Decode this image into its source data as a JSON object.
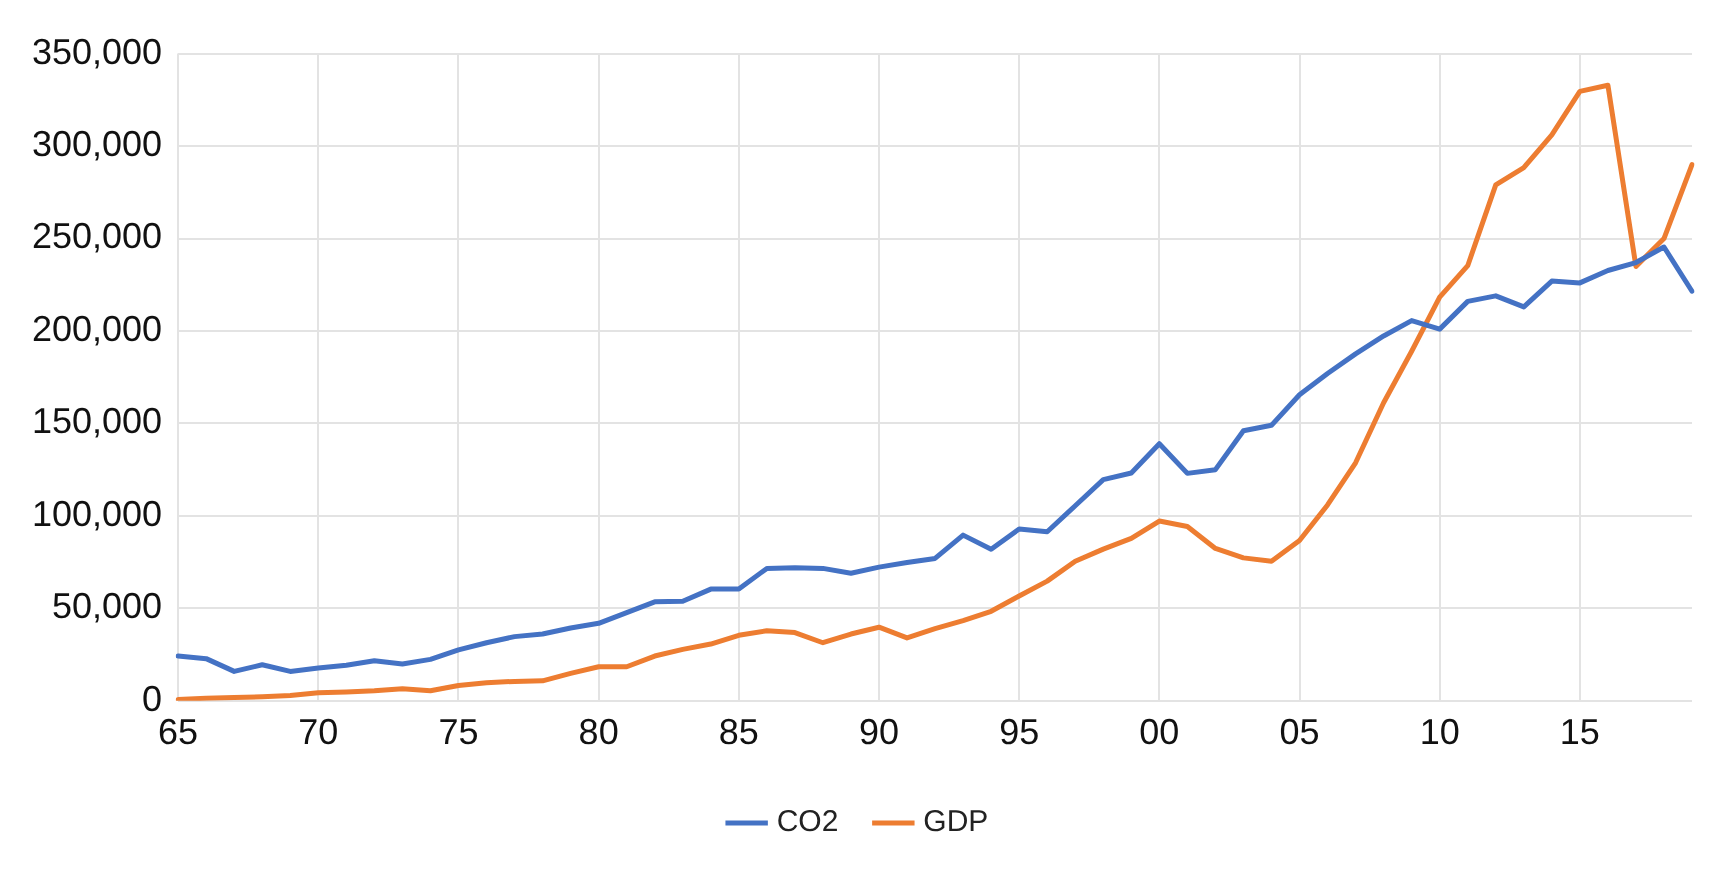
{
  "chart_data": {
    "type": "line",
    "categories": [
      "65",
      null,
      null,
      null,
      null,
      "70",
      null,
      null,
      null,
      null,
      "75",
      null,
      null,
      null,
      null,
      "80",
      null,
      null,
      null,
      null,
      "85",
      null,
      null,
      null,
      null,
      "90",
      null,
      null,
      null,
      null,
      "95",
      null,
      null,
      null,
      null,
      "00",
      null,
      null,
      null,
      null,
      "05",
      null,
      null,
      null,
      null,
      "10",
      null,
      null,
      null,
      null,
      "15",
      null,
      null,
      null,
      null
    ],
    "series": [
      {
        "name": "CO2",
        "color": "#4472c4",
        "values": [
          24200,
          22800,
          15900,
          19500,
          15900,
          17700,
          19200,
          21700,
          19900,
          22400,
          27500,
          31400,
          34700,
          36100,
          39400,
          41900,
          47700,
          53500,
          53800,
          60400,
          60400,
          71600,
          71900,
          71600,
          69000,
          72300,
          74800,
          77000,
          89600,
          82000,
          92900,
          91400,
          105500,
          119600,
          123200,
          139000,
          123000,
          125000,
          146000,
          149000,
          165500,
          177000,
          187600,
          197300,
          205600,
          201000,
          216000,
          219000,
          213000,
          227000,
          226000,
          232700,
          237000,
          245400,
          221500
        ]
      },
      {
        "name": "GDP",
        "color": "#ed7d31",
        "values": [
          700,
          1400,
          1800,
          2200,
          2900,
          4300,
          4700,
          5400,
          6500,
          5400,
          8300,
          9800,
          10500,
          10800,
          14800,
          18400,
          18400,
          24200,
          27800,
          30700,
          35400,
          37900,
          36900,
          31400,
          36100,
          39800,
          34000,
          39000,
          43400,
          48400,
          56700,
          64700,
          75500,
          82000,
          87800,
          97200,
          94300,
          82400,
          77300,
          75500,
          86700,
          105900,
          128700,
          161200,
          189000,
          218300,
          235300,
          279000,
          288400,
          306000,
          329600,
          332900,
          234900,
          250000,
          290000
        ]
      }
    ],
    "ylim": [
      0,
      350000
    ],
    "yticks": [
      0,
      {
        "value": 50000,
        "label": "50,000"
      },
      {
        "value": 100000,
        "label": "100,000"
      },
      {
        "value": 150000,
        "label": "150,000"
      },
      {
        "value": 200000,
        "label": "200,000"
      },
      {
        "value": 250000,
        "label": "250,000"
      },
      {
        "value": 300000,
        "label": "300,000"
      },
      {
        "value": 350000,
        "label": "350,000"
      }
    ],
    "grid": true,
    "legend": "bottom",
    "marker": "none",
    "line_style": "solid"
  }
}
